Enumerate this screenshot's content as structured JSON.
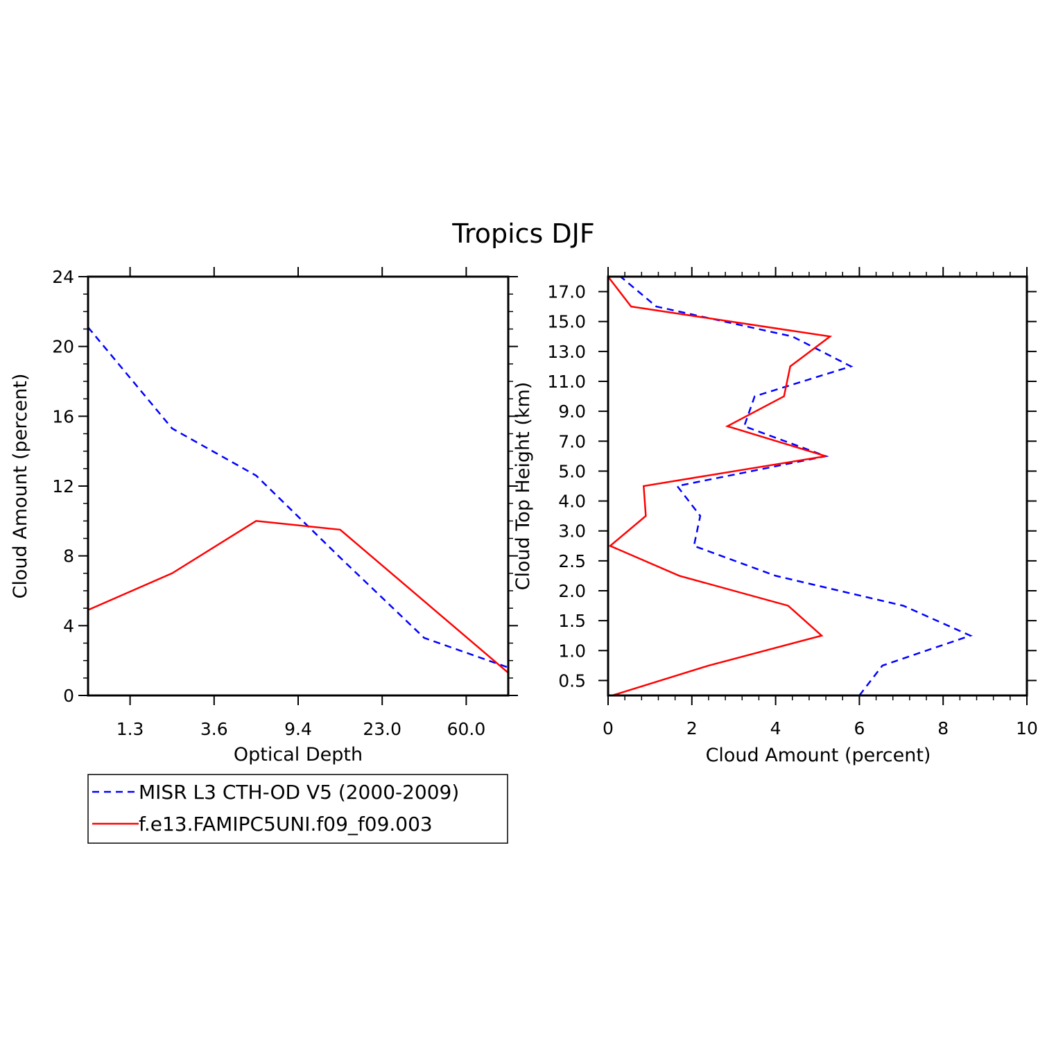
{
  "title": "Tropics DJF",
  "legend": {
    "entries": [
      {
        "label": "MISR L3 CTH-OD V5 (2000-2009)",
        "color": "#0000ff",
        "style": "dashed"
      },
      {
        "label": "f.e13.FAMIPC5UNI.f09_f09.003",
        "color": "#ff0000",
        "style": "solid"
      }
    ]
  },
  "chart_data": [
    {
      "type": "line",
      "xlabel": "Optical Depth",
      "ylabel": "Cloud Amount (percent)",
      "x_tick_labels": [
        "1.3",
        "3.6",
        "9.4",
        "23.0",
        "60.0"
      ],
      "y_tick_labels": [
        "0",
        "4",
        "8",
        "12",
        "16",
        "20",
        "24"
      ],
      "ylim": [
        0,
        24
      ],
      "x_scale": "categorical optical-depth bins",
      "series": [
        {
          "name": "MISR L3 CTH-OD V5 (2000-2009)",
          "color": "#0000ff",
          "style": "dashed",
          "values": [
            21.1,
            15.3,
            12.6,
            7.9,
            3.3,
            1.6
          ]
        },
        {
          "name": "f.e13.FAMIPC5UNI.f09_f09.003",
          "color": "#ff0000",
          "style": "solid",
          "values": [
            4.9,
            7.0,
            10.0,
            9.5,
            5.4,
            1.3
          ]
        }
      ]
    },
    {
      "type": "line",
      "xlabel": "Cloud Amount (percent)",
      "ylabel": "Cloud Top Height (km)",
      "xlim": [
        0,
        10
      ],
      "x_tick_labels": [
        "0",
        "2",
        "4",
        "6",
        "8",
        "10"
      ],
      "y_tick_labels": [
        "0.5",
        "1.0",
        "1.5",
        "2.0",
        "2.5",
        "3.0",
        "4.0",
        "5.0",
        "7.0",
        "9.0",
        "11.0",
        "13.0",
        "15.0",
        "17.0"
      ],
      "orientation": "horizontal profile",
      "series": [
        {
          "name": "MISR L3 CTH-OD V5 (2000-2009)",
          "color": "#0000ff",
          "style": "dashed",
          "values": [
            6.0,
            6.55,
            8.65,
            7.05,
            4.0,
            2.05,
            2.2,
            1.65,
            5.2,
            3.25,
            3.5,
            5.8,
            4.4,
            1.15,
            0.3
          ]
        },
        {
          "name": "f.e13.FAMIPC5UNI.f09_f09.003",
          "color": "#ff0000",
          "style": "solid",
          "values": [
            0.1,
            2.4,
            5.1,
            4.3,
            1.7,
            0.05,
            0.9,
            0.85,
            5.2,
            2.85,
            4.2,
            4.35,
            5.3,
            0.55,
            0.0
          ]
        }
      ]
    }
  ]
}
